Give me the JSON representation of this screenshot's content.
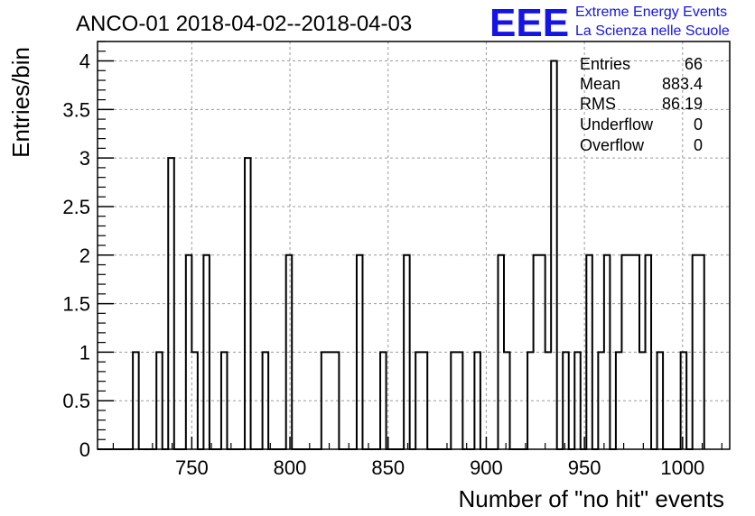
{
  "chart_data": {
    "type": "bar",
    "title": "ANCO-01 2018-04-02--2018-04-03",
    "xlabel": "Number of \"no hit\" events",
    "ylabel": "Entries/bin",
    "xlim": [
      702,
      1024
    ],
    "ylim": [
      0,
      4.2
    ],
    "grid": true,
    "x_ticks": [
      750,
      800,
      850,
      900,
      950,
      1000
    ],
    "y_ticks": [
      0,
      0.5,
      1,
      1.5,
      2,
      2.5,
      3,
      3.5,
      4
    ],
    "x_tick_labels": [
      "750",
      "800",
      "850",
      "900",
      "950",
      "1000"
    ],
    "y_tick_labels": [
      "0",
      "0.5",
      "1",
      "1.5",
      "2",
      "2.5",
      "3",
      "3.5",
      "4"
    ],
    "bin_edges": [
      702,
      705,
      708,
      711,
      714,
      717,
      720,
      723,
      726,
      729,
      732,
      735,
      738,
      741,
      744,
      747,
      750,
      753,
      756,
      759,
      762,
      765,
      768,
      771,
      774,
      777,
      780,
      783,
      786,
      789,
      792,
      795,
      798,
      801,
      804,
      807,
      810,
      813,
      816,
      819,
      822,
      825,
      828,
      831,
      834,
      837,
      840,
      843,
      846,
      849,
      852,
      855,
      858,
      861,
      864,
      867,
      870,
      873,
      876,
      879,
      882,
      885,
      888,
      891,
      894,
      897,
      900,
      903,
      906,
      909,
      912,
      915,
      918,
      921,
      924,
      927,
      930,
      933,
      936,
      939,
      942,
      945,
      948,
      951,
      954,
      957,
      960,
      963,
      966,
      969,
      972,
      975,
      978,
      981,
      984,
      987,
      990,
      993,
      996,
      999,
      1002,
      1005,
      1008,
      1011
    ],
    "values": [
      0,
      0,
      0,
      0,
      0,
      0,
      1,
      0,
      0,
      0,
      1,
      0,
      3,
      0,
      0,
      2,
      1,
      0,
      2,
      0,
      0,
      1,
      0,
      0,
      0,
      3,
      0,
      0,
      1,
      0,
      0,
      0,
      2,
      0,
      0,
      0,
      0,
      0,
      1,
      1,
      1,
      0,
      0,
      0,
      2,
      0,
      0,
      0,
      1,
      0,
      0,
      0,
      2,
      0,
      1,
      1,
      0,
      0,
      0,
      0,
      1,
      1,
      0,
      0,
      1,
      0,
      0,
      0,
      2,
      1,
      0,
      0,
      0,
      1,
      2,
      2,
      1,
      4,
      0,
      1,
      0,
      1,
      0,
      2,
      0,
      1,
      2,
      0,
      1,
      2,
      2,
      2,
      1,
      2,
      0,
      1,
      0,
      0,
      0,
      1,
      0,
      2,
      2
    ],
    "stats": {
      "entries_label": "Entries",
      "entries_value": "66",
      "mean_label": "Mean",
      "mean_value": "883.4",
      "rms_label": "RMS",
      "rms_value": "86.19",
      "underflow_label": "Underflow",
      "underflow_value": "0",
      "overflow_label": "Overflow",
      "overflow_value": "0"
    }
  },
  "logo": {
    "mark": "EEE",
    "line1": "Extreme Energy Events",
    "line2": "La Scienza nelle Scuole",
    "color": "#1414e6"
  }
}
